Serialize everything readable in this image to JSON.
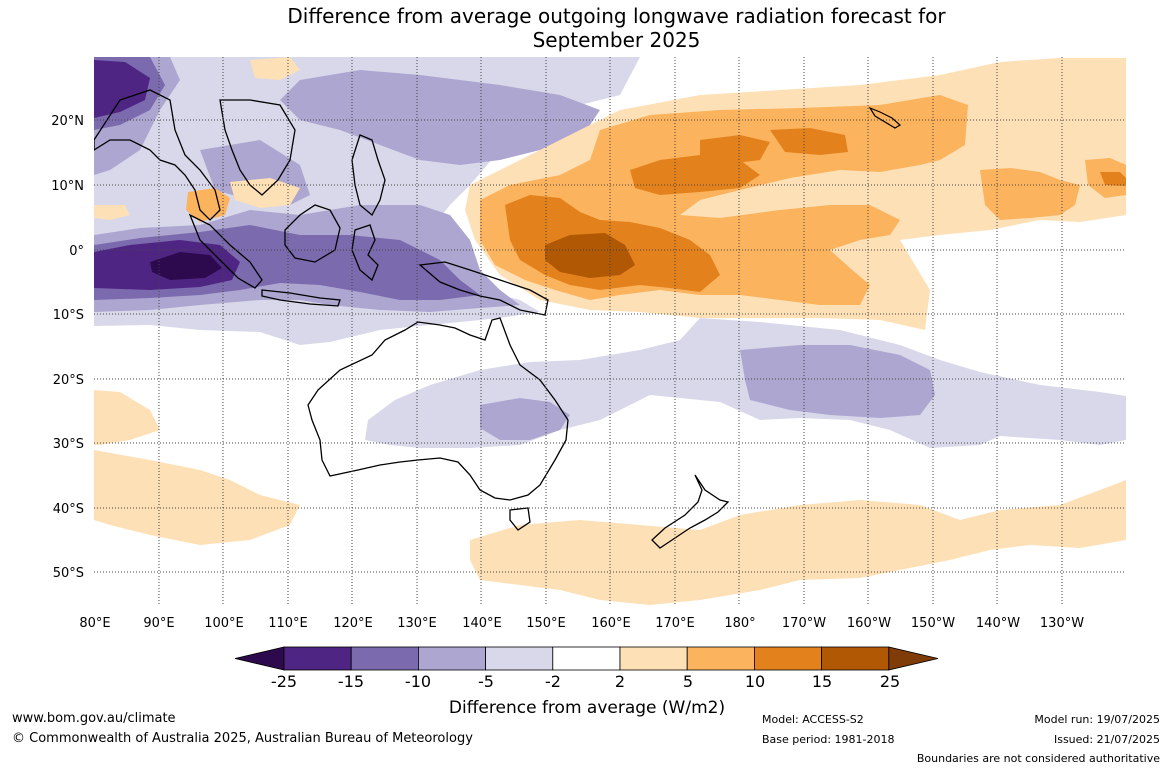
{
  "title": {
    "line1": "Difference from average outgoing longwave radiation forecast for",
    "line2": "September 2025"
  },
  "axes": {
    "lon_labels": [
      "80°E",
      "90°E",
      "100°E",
      "110°E",
      "120°E",
      "130°E",
      "140°E",
      "150°E",
      "160°E",
      "170°E",
      "180°",
      "170°W",
      "160°W",
      "150°W",
      "140°W",
      "130°W"
    ],
    "lat_labels": [
      "20°N",
      "10°N",
      "0°",
      "10°S",
      "20°S",
      "30°S",
      "40°S",
      "50°S"
    ]
  },
  "colorbar": {
    "title": "Difference from average (W/m2)",
    "tick_labels": [
      "-25",
      "-15",
      "-10",
      "-5",
      "-2",
      "2",
      "5",
      "10",
      "15",
      "25"
    ],
    "colors": [
      "#2d0a4e",
      "#4f2583",
      "#7b6aae",
      "#ada6d0",
      "#d8d8ea",
      "#ffffff",
      "#fde0b6",
      "#fbb35d",
      "#e3821c",
      "#b15805",
      "#7f3b08"
    ]
  },
  "footer": {
    "website": "www.bom.gov.au/climate",
    "copyright": "© Commonwealth of Australia 2025, Australian Bureau of Meteorology",
    "model": "Model: ACCESS-S2",
    "base_period": "Base period: 1981-2018",
    "model_run": "Model run: 19/07/2025",
    "issued": "Issued: 21/07/2025",
    "disclaimer": "Boundaries are not considered authoritative"
  }
}
